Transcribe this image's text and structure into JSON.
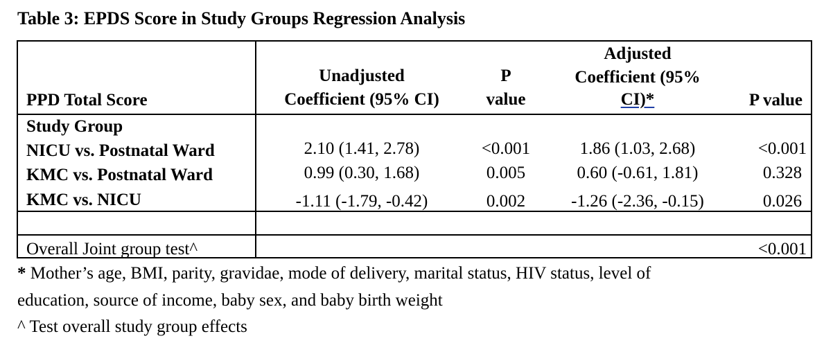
{
  "title": "Table 3: EPDS Score in Study Groups Regression Analysis",
  "header": {
    "col1": "PPD Total Score",
    "unadj_line1": "Unadjusted",
    "unadj_line2": "Coefficient (95% CI)",
    "p1_line1": "P",
    "p1_line2": "value",
    "adj_line1": "Adjusted",
    "adj_line2": "Coefficient (95%",
    "adj_line3": "CI)*",
    "p2": "P value"
  },
  "group_label": "Study Group",
  "rows": [
    {
      "label": "NICU vs. Postnatal Ward",
      "unadj": "2.10 (1.41, 2.78)",
      "p1": "<0.001",
      "adj": "1.86 (1.03, 2.68)",
      "p2": "<0.001"
    },
    {
      "label": "KMC vs. Postnatal Ward",
      "unadj": "0.99 (0.30, 1.68)",
      "p1": "0.005",
      "adj": "0.60 (-0.61, 1.81)",
      "p2": "0.328"
    },
    {
      "label": "KMC vs. NICU",
      "unadj": "-1.11 (-1.79, -0.42)",
      "p1": "0.002",
      "adj": "-1.26 (-2.36, -0.15)",
      "p2": "0.026"
    }
  ],
  "joint": {
    "label": "Overall Joint group test^",
    "p": "<0.001"
  },
  "footnotes": {
    "star_mark": "*",
    "star_text": " Mother’s age, BMI, parity, gravidae, mode of delivery, marital status, HIV status, level of",
    "star_text2": "education, source of income, baby sex, and baby birth weight",
    "caret": "^ Test overall study group effects"
  }
}
